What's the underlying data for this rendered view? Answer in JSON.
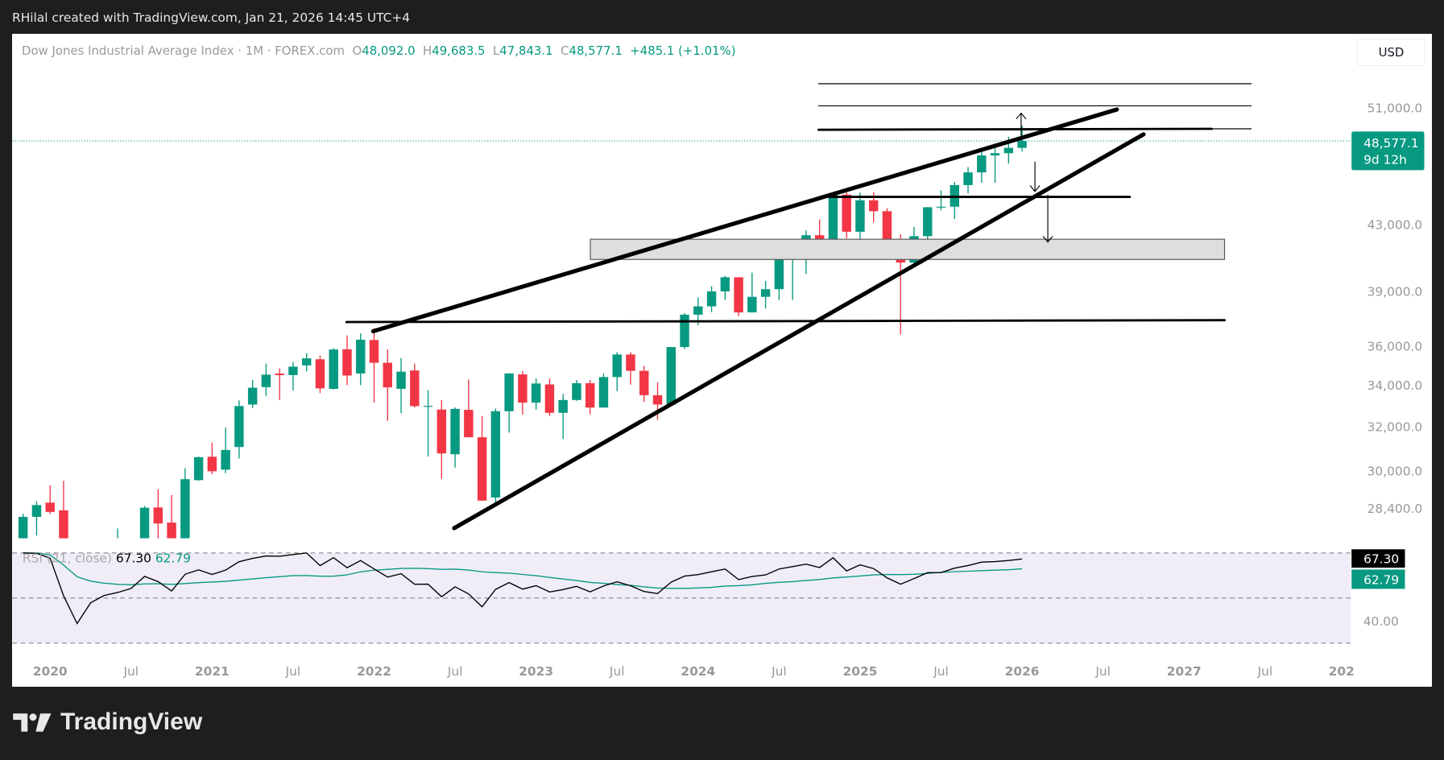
{
  "credit": "RHilal created with TradingView.com, Jan 21, 2026 14:45 UTC+4",
  "legend": {
    "symbol": "Dow Jones Industrial Average Index · 1M · FOREX.com",
    "o_label": "O",
    "o": "48,092.0",
    "h_label": "H",
    "h": "49,683.5",
    "l_label": "L",
    "l": "47,843.1",
    "c_label": "C",
    "c": "48,577.1",
    "change": "+485.1 (+1.01%)"
  },
  "currency": "USD",
  "last_price": {
    "price": "48,577.1",
    "countdown": "9d 12h"
  },
  "rsi": {
    "label": "RSI (21, close)",
    "value": "67.30",
    "signal": "62.79",
    "axis_label": "40.00",
    "levels": [
      70,
      50,
      30
    ]
  },
  "brand": "TradingView",
  "colors": {
    "up": "#089981",
    "down": "#f23645",
    "rsi_line": "#000000",
    "rsi_signal": "#089981",
    "rsi_bg": "#f0edf9"
  },
  "chart_data": {
    "type": "candlestick",
    "interval": "1M",
    "y_scale": "log",
    "price_ticks": [
      "51,000.0",
      "43,000.0",
      "39,000.0",
      "36,000.0",
      "34,000.0",
      "32,000.0",
      "30,000.0",
      "28,400.0"
    ],
    "price_tick_values": [
      51000,
      43000,
      39000,
      36000,
      34000,
      32000,
      30000,
      28400
    ],
    "x_ticks": [
      "2020",
      "Jul",
      "2021",
      "Jul",
      "2022",
      "Jul",
      "2023",
      "Jul",
      "2024",
      "Jul",
      "2025",
      "Jul",
      "2026",
      "Jul",
      "2027",
      "Jul",
      "202"
    ],
    "ohlc": [
      [
        "2019-11",
        27050,
        28175,
        27000,
        28051
      ],
      [
        "2019-12",
        28050,
        28700,
        27300,
        28538
      ],
      [
        "2020-01",
        28640,
        29374,
        28170,
        28256
      ],
      [
        "2020-02",
        28320,
        29568,
        24681,
        25409
      ],
      [
        "2020-03",
        25590,
        27102,
        18213,
        21917
      ],
      [
        "2020-04",
        21227,
        24764,
        20735,
        24345
      ],
      [
        "2020-05",
        24120,
        25758,
        23361,
        25383
      ],
      [
        "2020-06",
        25342,
        27580,
        24843,
        25813
      ],
      [
        "2020-07",
        25880,
        27072,
        25523,
        26428
      ],
      [
        "2020-08",
        26419,
        28502,
        26284,
        28430
      ],
      [
        "2020-09",
        28439,
        29199,
        26537,
        27782
      ],
      [
        "2020-10",
        27816,
        28958,
        26143,
        26502
      ],
      [
        "2020-11",
        26925,
        30116,
        26925,
        29639
      ],
      [
        "2020-12",
        29598,
        30637,
        29568,
        30606
      ],
      [
        "2021-01",
        30627,
        31272,
        29856,
        29983
      ],
      [
        "2021-02",
        30054,
        31961,
        29904,
        30932
      ],
      [
        "2021-03",
        31066,
        33259,
        30548,
        32981
      ],
      [
        "2021-04",
        33054,
        34256,
        32888,
        33875
      ],
      [
        "2021-05",
        33904,
        35091,
        33474,
        34529
      ],
      [
        "2021-06",
        34584,
        34849,
        33271,
        34503
      ],
      [
        "2021-07",
        34507,
        35171,
        33742,
        34935
      ],
      [
        "2021-08",
        35000,
        35631,
        34690,
        35361
      ],
      [
        "2021-09",
        35312,
        35510,
        33613,
        33844
      ],
      [
        "2021-10",
        33820,
        35892,
        33785,
        35820
      ],
      [
        "2021-11",
        35833,
        36565,
        34006,
        34484
      ],
      [
        "2021-12",
        34586,
        36679,
        34006,
        36338
      ],
      [
        "2022-01",
        36322,
        36953,
        33150,
        35132
      ],
      [
        "2022-02",
        35132,
        35824,
        32273,
        33893
      ],
      [
        "2022-03",
        33821,
        35372,
        32632,
        34678
      ],
      [
        "2022-04",
        34740,
        35093,
        32913,
        32977
      ],
      [
        "2022-05",
        32977,
        33761,
        30636,
        32990
      ],
      [
        "2022-06",
        32813,
        33272,
        29653,
        30775
      ],
      [
        "2022-07",
        30737,
        32912,
        30143,
        32845
      ],
      [
        "2022-08",
        32798,
        34282,
        31509,
        31510
      ],
      [
        "2022-09",
        31510,
        32505,
        28715,
        28726
      ],
      [
        "2022-10",
        28856,
        32861,
        28661,
        32733
      ],
      [
        "2022-11",
        32733,
        34590,
        31727,
        34590
      ],
      [
        "2022-12",
        34542,
        34712,
        32573,
        33147
      ],
      [
        "2023-01",
        33148,
        34342,
        32812,
        34086
      ],
      [
        "2023-02",
        34039,
        34335,
        32500,
        32657
      ],
      [
        "2023-03",
        32656,
        33572,
        31429,
        33274
      ],
      [
        "2023-04",
        33274,
        34257,
        33235,
        34098
      ],
      [
        "2023-05",
        34098,
        34257,
        32586,
        32908
      ],
      [
        "2023-06",
        32908,
        34589,
        32908,
        34408
      ],
      [
        "2023-07",
        34408,
        35679,
        33706,
        35560
      ],
      [
        "2023-08",
        35560,
        35679,
        34029,
        34722
      ],
      [
        "2023-09",
        34722,
        34977,
        33175,
        33508
      ],
      [
        "2023-10",
        33508,
        34142,
        32327,
        33053
      ],
      [
        "2023-11",
        33053,
        35954,
        32991,
        35951
      ],
      [
        "2023-12",
        35951,
        37778,
        35849,
        37690
      ],
      [
        "2024-01",
        37690,
        38651,
        37122,
        38150
      ],
      [
        "2024-02",
        38150,
        39283,
        37824,
        38996
      ],
      [
        "2024-03",
        38996,
        39889,
        38519,
        39807
      ],
      [
        "2024-04",
        39807,
        39807,
        37612,
        37816
      ],
      [
        "2024-05",
        37816,
        40077,
        37816,
        38686
      ],
      [
        "2024-06",
        38686,
        39593,
        38035,
        39119
      ],
      [
        "2024-07",
        39119,
        41376,
        38499,
        40843
      ],
      [
        "2024-08",
        40843,
        41585,
        38498,
        41563
      ],
      [
        "2024-09",
        41563,
        42628,
        40012,
        42330
      ],
      [
        "2024-10",
        42330,
        43325,
        41661,
        41763
      ],
      [
        "2024-11",
        41763,
        45071,
        41644,
        44911
      ],
      [
        "2024-12",
        44911,
        45074,
        42136,
        42544
      ],
      [
        "2025-01",
        42544,
        45054,
        41844,
        44544
      ],
      [
        "2025-02",
        44544,
        45073,
        43121,
        43841
      ],
      [
        "2025-03",
        43841,
        44034,
        41132,
        42001
      ],
      [
        "2025-04",
        42001,
        42397,
        36612,
        40669
      ],
      [
        "2025-05",
        40669,
        42842,
        40400,
        42270
      ],
      [
        "2025-06",
        42270,
        44097,
        41750,
        44094
      ],
      [
        "2025-07",
        44094,
        45205,
        43900,
        44130
      ],
      [
        "2025-08",
        44130,
        45760,
        43350,
        45544
      ],
      [
        "2025-09",
        45544,
        46758,
        45000,
        46397
      ],
      [
        "2025-10",
        46397,
        47862,
        45700,
        47562
      ],
      [
        "2025-11",
        47562,
        48400,
        45700,
        47716
      ],
      [
        "2025-12",
        47716,
        48886,
        47000,
        48092
      ],
      [
        "2026-01",
        48092,
        49683.5,
        47843.1,
        48577.1
      ]
    ]
  }
}
